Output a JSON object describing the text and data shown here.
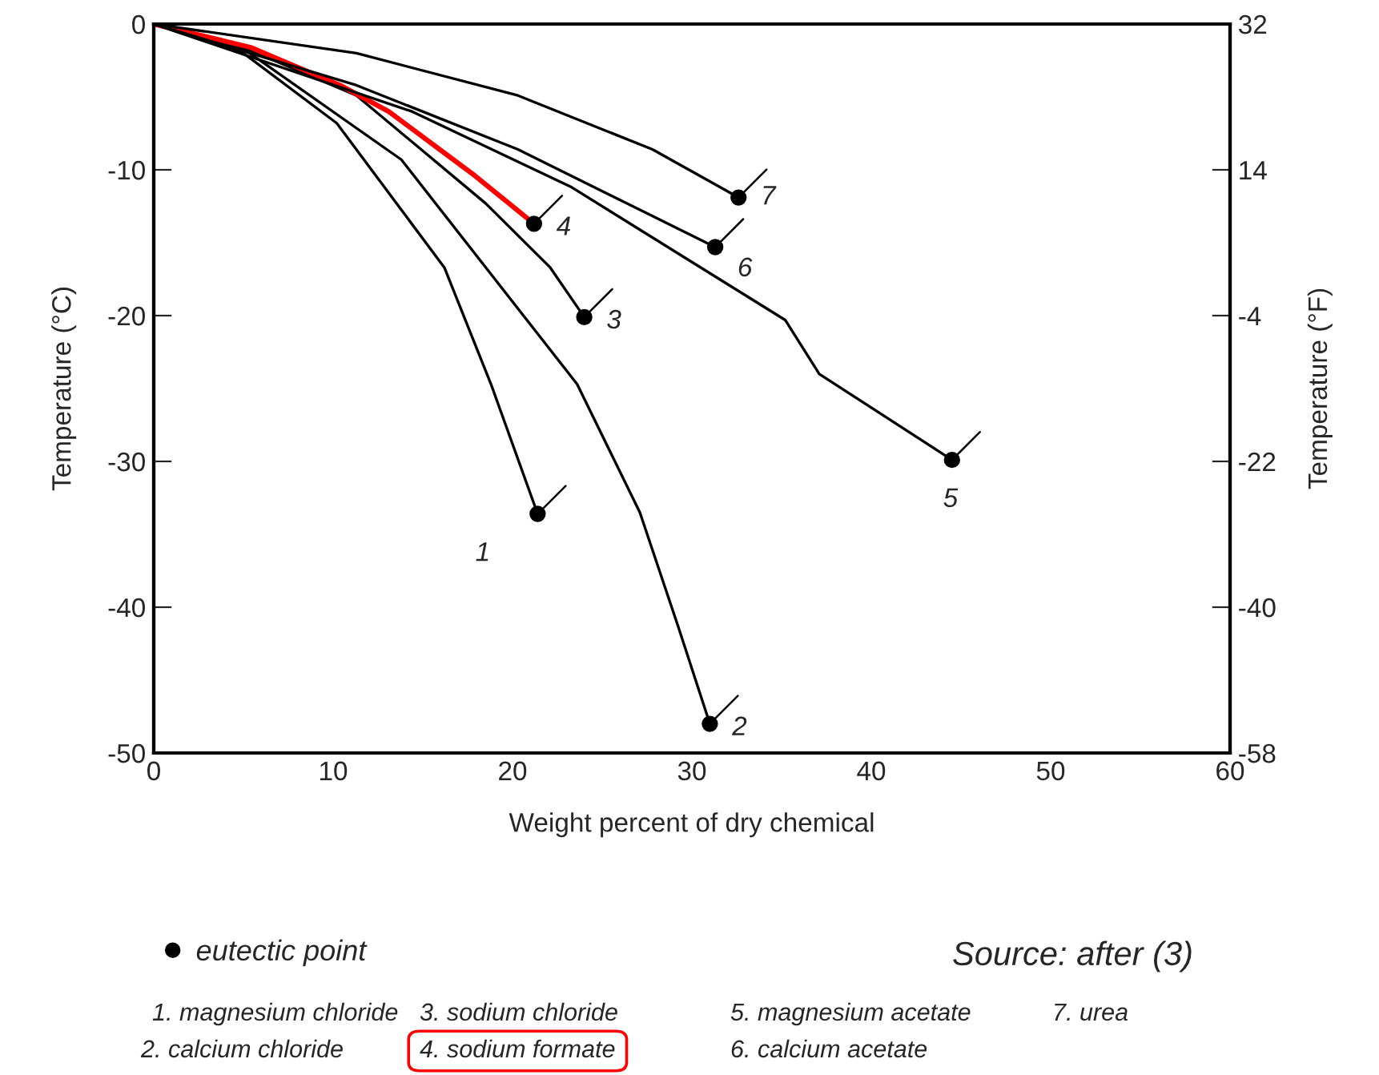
{
  "chart_data": {
    "type": "line",
    "xlabel": "Weight percent of dry chemical",
    "ylabel": "Temperature (°C)",
    "y2label": "Temperature (°F)",
    "xlim": [
      0,
      60
    ],
    "xticks": [
      0,
      10,
      20,
      30,
      40,
      50,
      60
    ],
    "ylim": [
      -50,
      0
    ],
    "yticks": [
      0,
      -10,
      -20,
      -30,
      -40,
      -50
    ],
    "y2lim": [
      -58,
      32
    ],
    "y2ticks": [
      32,
      14,
      -4,
      -22,
      -40,
      -58
    ],
    "grid": false,
    "legend": "bottom left",
    "line_style": "solid",
    "series": [
      {
        "color": "#000000",
        "x": [
          0,
          5,
          10.2,
          16.2,
          18.8,
          21.4
        ],
        "values": [
          0,
          -2,
          -6.8,
          -16.7,
          -24.7,
          -33.6
        ]
      },
      {
        "color": "#000000",
        "x": [
          0,
          5,
          13.8,
          23.6,
          27.1,
          29.2,
          31.0
        ],
        "values": [
          0,
          -1.7,
          -9.3,
          -24.7,
          -33.5,
          -41.2,
          -48.0
        ]
      },
      {
        "color": "#000000",
        "x": [
          0,
          5,
          11.3,
          18.5,
          22.1,
          24.0
        ],
        "values": [
          0,
          -1.6,
          -4.9,
          -12.3,
          -16.7,
          -20.1
        ]
      },
      {
        "color": "#ff0000",
        "x": [
          0,
          5.4,
          10.4,
          13.1,
          15.5,
          17.9,
          21.2
        ],
        "values": [
          0,
          -1.6,
          -4.2,
          -6.0,
          -8.2,
          -10.4,
          -13.7
        ]
      },
      {
        "color": "#000000",
        "x": [
          0,
          14.4,
          23.3,
          35.2,
          37.1,
          44.5
        ],
        "values": [
          0,
          -6.0,
          -11.2,
          -20.3,
          -24.0,
          -29.9
        ]
      },
      {
        "color": "#000000",
        "x": [
          0,
          11.3,
          20.3,
          31.3
        ],
        "values": [
          0,
          -4.2,
          -8.6,
          -15.3
        ]
      },
      {
        "color": "#000000",
        "x": [
          0,
          11.3,
          20.3,
          27.8,
          32.6
        ],
        "values": [
          0,
          -2.0,
          -4.9,
          -8.6,
          -11.9
        ]
      },
      {
        "name": "eutectic point",
        "type": "scatter",
        "marker": "circle",
        "color": "#000000",
        "x": [
          21.4,
          31.0,
          24.0,
          21.2,
          44.5,
          31.3,
          32.6
        ],
        "values": [
          -33.6,
          -48.0,
          -20.1,
          -13.7,
          -29.9,
          -15.3,
          -11.9
        ]
      }
    ],
    "annotations": [
      {
        "text": "1",
        "x": 21.4,
        "y": -33.6
      },
      {
        "text": "2",
        "x": 31.0,
        "y": -48.0
      },
      {
        "text": "3",
        "x": 24.0,
        "y": -20.1
      },
      {
        "text": "4",
        "x": 21.2,
        "y": -13.7
      },
      {
        "text": "5",
        "x": 44.5,
        "y": -29.9
      },
      {
        "text": "6",
        "x": 31.3,
        "y": -15.3
      },
      {
        "text": "7",
        "x": 32.6,
        "y": -11.9
      },
      "Source: after (3)",
      "1. magnesium chloride",
      "2. calcium chloride",
      "3. sodium chloride",
      "4. sodium formate",
      "5. magnesium acetate",
      "6. calcium acetate",
      "7. urea"
    ]
  }
}
